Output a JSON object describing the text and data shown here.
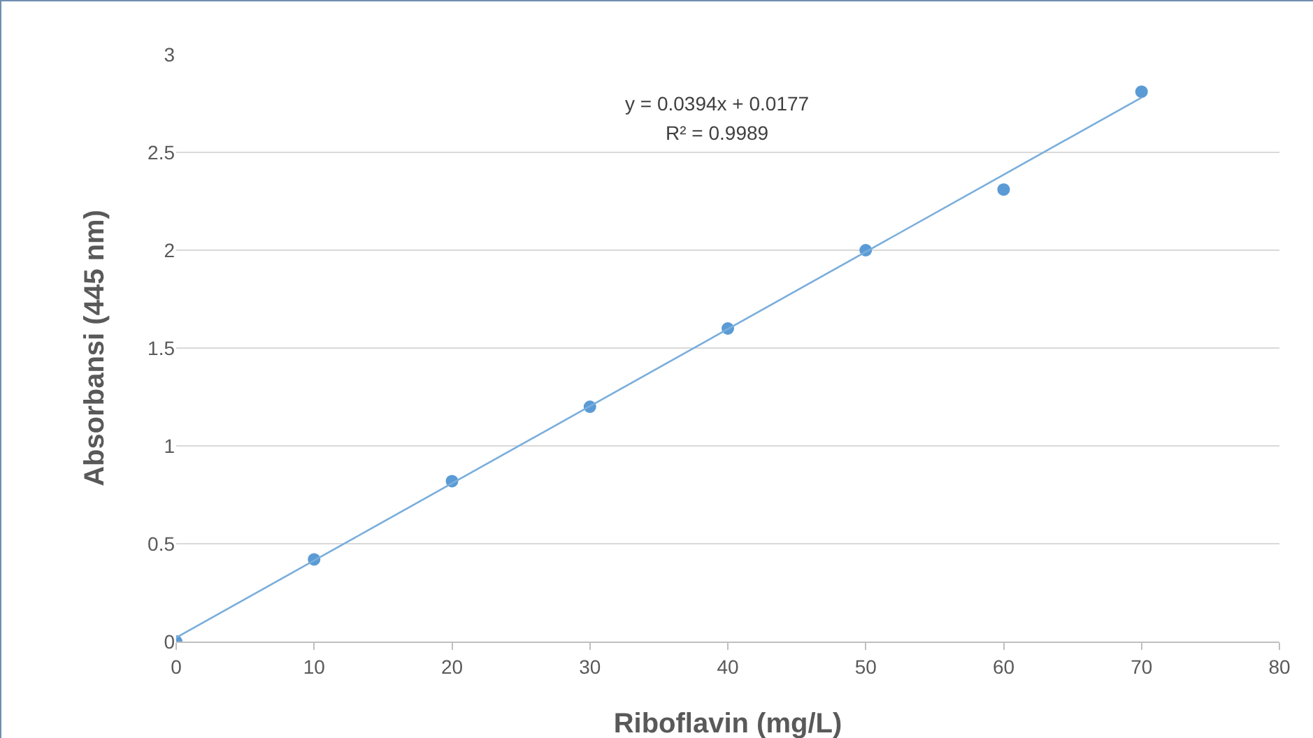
{
  "chart_data": {
    "type": "scatter",
    "xlabel": "Riboflavin (mg/L)",
    "ylabel": "Absorbansi (445 nm)",
    "x": [
      0,
      10,
      20,
      30,
      40,
      50,
      60,
      70
    ],
    "series": [
      {
        "type": "scatter",
        "color": "#5b9bd5",
        "marker": "circle",
        "values": [
          0,
          0.42,
          0.82,
          1.2,
          1.6,
          2.0,
          2.31,
          2.81
        ]
      },
      {
        "type": "line",
        "color": "#7aaedc",
        "marker": "none",
        "x": [
          0,
          70
        ],
        "values": [
          0.02,
          2.78
        ]
      }
    ],
    "annotations": [
      "y = 0.0394x + 0.0177",
      "R² = 0.9989"
    ],
    "xlim": [
      0,
      80
    ],
    "xticks": [
      0,
      10,
      20,
      30,
      40,
      50,
      60,
      70,
      80
    ],
    "ylim": [
      0,
      3
    ],
    "yticks": [
      0,
      0.5,
      1,
      1.5,
      2,
      2.5,
      3
    ],
    "grid": "y",
    "legend": false
  }
}
